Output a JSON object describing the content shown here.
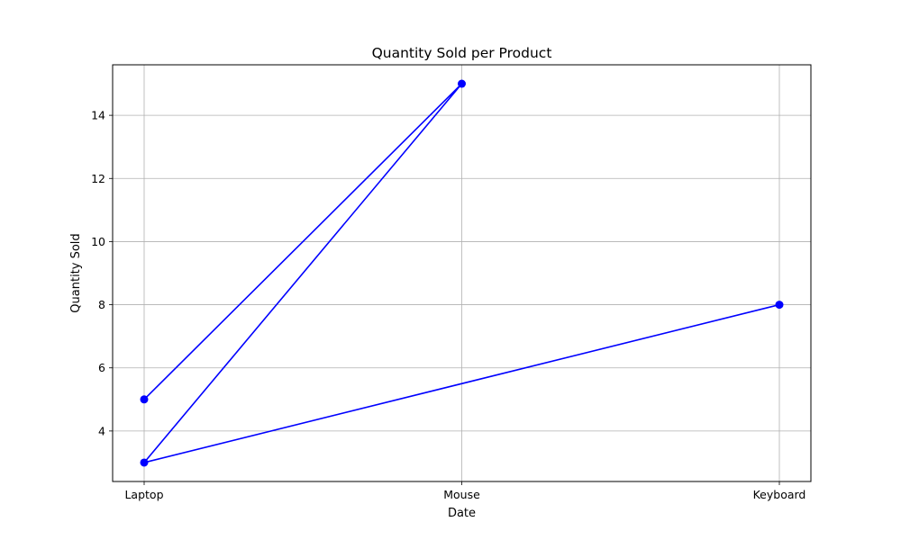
{
  "chart_data": {
    "type": "line",
    "title": "Quantity Sold per Product",
    "xlabel": "Date",
    "ylabel": "Quantity Sold",
    "categories": [
      "Laptop",
      "Mouse",
      "Keyboard"
    ],
    "series": [
      {
        "points": [
          {
            "x": "Laptop",
            "y": 5
          },
          {
            "x": "Mouse",
            "y": 15
          },
          {
            "x": "Laptop",
            "y": 3
          },
          {
            "x": "Keyboard",
            "y": 8
          }
        ]
      }
    ],
    "yticks": [
      4,
      6,
      8,
      10,
      12,
      14
    ],
    "ylim": [
      2.4,
      15.6
    ],
    "grid": true,
    "line_color": "#0000ff",
    "marker": "circle"
  }
}
